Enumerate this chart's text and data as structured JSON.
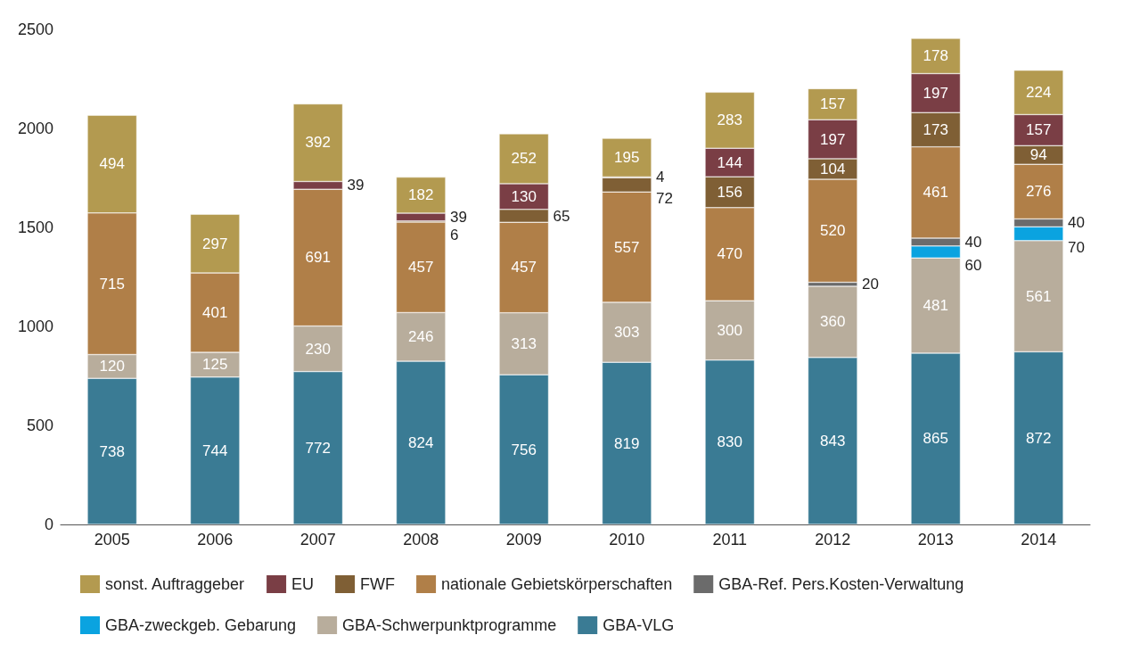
{
  "chart_data": {
    "type": "bar",
    "stacked": true,
    "data_labels": true,
    "grid": false,
    "legend": "bottom",
    "categories": [
      "2005",
      "2006",
      "2007",
      "2008",
      "2009",
      "2010",
      "2011",
      "2012",
      "2013",
      "2014"
    ],
    "ylim": [
      0,
      2500
    ],
    "yticks": [
      0,
      500,
      1000,
      1500,
      2000,
      2500
    ],
    "series": [
      {
        "name": "GBA-VLG",
        "color": "#3a7b94",
        "values": [
          738,
          744,
          772,
          824,
          756,
          819,
          830,
          843,
          865,
          872
        ]
      },
      {
        "name": "GBA-Schwerpunktprogramme",
        "color": "#b8ad9c",
        "values": [
          120,
          125,
          230,
          246,
          313,
          303,
          300,
          360,
          481,
          561
        ]
      },
      {
        "name": "GBA-zweckgeb. Gebarung",
        "color": "#0aa3e0",
        "values": [
          null,
          null,
          null,
          null,
          null,
          null,
          null,
          null,
          60,
          70
        ]
      },
      {
        "name": "GBA-Ref. Pers.Kosten-Verwaltung",
        "color": "#6b6b6b",
        "values": [
          null,
          null,
          null,
          null,
          null,
          null,
          null,
          20,
          40,
          40
        ]
      },
      {
        "name": "nationale Gebietskörperschaften",
        "color": "#b07f48",
        "values": [
          715,
          401,
          691,
          457,
          457,
          557,
          470,
          520,
          461,
          276
        ]
      },
      {
        "name": "FWF",
        "color": "#7f5f35",
        "values": [
          null,
          null,
          null,
          6,
          65,
          72,
          156,
          104,
          173,
          94
        ]
      },
      {
        "name": "EU",
        "color": "#7a3e45",
        "values": [
          null,
          null,
          39,
          39,
          130,
          4,
          144,
          197,
          197,
          157
        ]
      },
      {
        "name": "sonst. Auftraggeber",
        "color": "#b39a50",
        "values": [
          494,
          297,
          392,
          182,
          252,
          195,
          283,
          157,
          178,
          224
        ]
      }
    ]
  }
}
